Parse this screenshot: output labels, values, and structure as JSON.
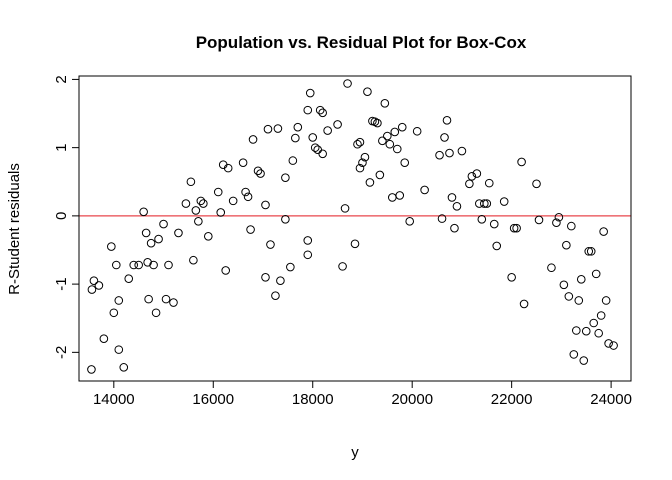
{
  "chart_data": {
    "type": "scatter",
    "title": "Population vs. Residual Plot for Box-Cox",
    "xlabel": "y",
    "ylabel": "R-Student residuals",
    "xlim": [
      13300,
      24400
    ],
    "ylim": [
      -2.42,
      2.05
    ],
    "xticks": [
      14000,
      16000,
      18000,
      20000,
      22000,
      24000
    ],
    "yticks": [
      -2,
      -1,
      0,
      1,
      2
    ],
    "grid": false,
    "legend": "none",
    "hline": {
      "y": 0,
      "color": "#e8474c"
    },
    "point_color": "#000000",
    "points": [
      [
        13550,
        -2.25
      ],
      [
        13560,
        -1.08
      ],
      [
        13600,
        -0.95
      ],
      [
        13700,
        -1.02
      ],
      [
        13800,
        -1.8
      ],
      [
        13950,
        -0.45
      ],
      [
        14000,
        -1.42
      ],
      [
        14050,
        -0.72
      ],
      [
        14100,
        -1.24
      ],
      [
        14100,
        -1.96
      ],
      [
        14200,
        -2.22
      ],
      [
        14300,
        -0.92
      ],
      [
        14400,
        -0.72
      ],
      [
        14500,
        -0.72
      ],
      [
        14600,
        0.06
      ],
      [
        14650,
        -0.25
      ],
      [
        14680,
        -0.68
      ],
      [
        14700,
        -1.22
      ],
      [
        14750,
        -0.4
      ],
      [
        14800,
        -0.72
      ],
      [
        14850,
        -1.42
      ],
      [
        14900,
        -0.34
      ],
      [
        15000,
        -0.12
      ],
      [
        15050,
        -1.22
      ],
      [
        15100,
        -0.72
      ],
      [
        15200,
        -1.27
      ],
      [
        15300,
        -0.25
      ],
      [
        15450,
        0.18
      ],
      [
        15550,
        0.5
      ],
      [
        15600,
        -0.65
      ],
      [
        15650,
        0.08
      ],
      [
        15700,
        -0.08
      ],
      [
        15750,
        0.22
      ],
      [
        15800,
        0.18
      ],
      [
        15900,
        -0.3
      ],
      [
        16100,
        0.35
      ],
      [
        16150,
        0.05
      ],
      [
        16200,
        0.75
      ],
      [
        16250,
        -0.8
      ],
      [
        16300,
        0.7
      ],
      [
        16400,
        0.22
      ],
      [
        16600,
        0.78
      ],
      [
        16650,
        0.35
      ],
      [
        16700,
        0.28
      ],
      [
        16750,
        -0.2
      ],
      [
        16800,
        1.12
      ],
      [
        16900,
        0.66
      ],
      [
        16950,
        0.62
      ],
      [
        17050,
        0.16
      ],
      [
        17050,
        -0.9
      ],
      [
        17100,
        1.27
      ],
      [
        17150,
        -0.42
      ],
      [
        17250,
        -1.17
      ],
      [
        17300,
        1.28
      ],
      [
        17350,
        -0.95
      ],
      [
        17450,
        0.56
      ],
      [
        17450,
        -0.05
      ],
      [
        17550,
        -0.75
      ],
      [
        17600,
        0.81
      ],
      [
        17650,
        1.14
      ],
      [
        17700,
        1.3
      ],
      [
        17900,
        1.55
      ],
      [
        17900,
        -0.36
      ],
      [
        17900,
        -0.57
      ],
      [
        17950,
        1.8
      ],
      [
        18000,
        1.15
      ],
      [
        18050,
        1.0
      ],
      [
        18100,
        0.97
      ],
      [
        18150,
        1.55
      ],
      [
        18200,
        0.91
      ],
      [
        18200,
        1.51
      ],
      [
        18300,
        1.25
      ],
      [
        18500,
        1.34
      ],
      [
        18600,
        -0.74
      ],
      [
        18650,
        0.11
      ],
      [
        18700,
        1.94
      ],
      [
        18850,
        -0.41
      ],
      [
        18900,
        1.05
      ],
      [
        18950,
        1.08
      ],
      [
        18950,
        0.7
      ],
      [
        19000,
        0.78
      ],
      [
        19050,
        0.86
      ],
      [
        19100,
        1.82
      ],
      [
        19150,
        0.49
      ],
      [
        19200,
        1.39
      ],
      [
        19250,
        1.38
      ],
      [
        19300,
        1.36
      ],
      [
        19350,
        0.6
      ],
      [
        19400,
        1.1
      ],
      [
        19450,
        1.65
      ],
      [
        19500,
        1.17
      ],
      [
        19550,
        1.05
      ],
      [
        19600,
        0.27
      ],
      [
        19650,
        1.23
      ],
      [
        19700,
        0.98
      ],
      [
        19750,
        0.3
      ],
      [
        19800,
        1.3
      ],
      [
        19850,
        0.78
      ],
      [
        19950,
        -0.08
      ],
      [
        20100,
        1.24
      ],
      [
        20250,
        0.38
      ],
      [
        20550,
        0.89
      ],
      [
        20600,
        -0.04
      ],
      [
        20650,
        1.15
      ],
      [
        20700,
        1.4
      ],
      [
        20750,
        0.92
      ],
      [
        20800,
        0.27
      ],
      [
        20850,
        -0.18
      ],
      [
        20900,
        0.14
      ],
      [
        21000,
        0.95
      ],
      [
        21150,
        0.47
      ],
      [
        21200,
        0.58
      ],
      [
        21300,
        0.62
      ],
      [
        21350,
        0.18
      ],
      [
        21400,
        -0.05
      ],
      [
        21450,
        0.18
      ],
      [
        21500,
        0.18
      ],
      [
        21550,
        0.48
      ],
      [
        21650,
        -0.12
      ],
      [
        21700,
        -0.44
      ],
      [
        21850,
        0.21
      ],
      [
        22000,
        -0.9
      ],
      [
        22050,
        -0.18
      ],
      [
        22100,
        -0.18
      ],
      [
        22200,
        0.79
      ],
      [
        22250,
        -1.29
      ],
      [
        22500,
        0.47
      ],
      [
        22550,
        -0.06
      ],
      [
        22800,
        -0.76
      ],
      [
        22900,
        -0.1
      ],
      [
        22950,
        -0.02
      ],
      [
        23050,
        -1.01
      ],
      [
        23100,
        -0.43
      ],
      [
        23150,
        -1.18
      ],
      [
        23200,
        -0.15
      ],
      [
        23250,
        -2.03
      ],
      [
        23300,
        -1.68
      ],
      [
        23350,
        -1.24
      ],
      [
        23400,
        -0.93
      ],
      [
        23450,
        -2.12
      ],
      [
        23500,
        -1.69
      ],
      [
        23550,
        -0.52
      ],
      [
        23600,
        -0.52
      ],
      [
        23650,
        -1.57
      ],
      [
        23700,
        -0.85
      ],
      [
        23750,
        -1.72
      ],
      [
        23800,
        -1.46
      ],
      [
        23850,
        -0.23
      ],
      [
        23900,
        -1.24
      ],
      [
        23950,
        -1.87
      ],
      [
        24050,
        -1.9
      ]
    ]
  }
}
